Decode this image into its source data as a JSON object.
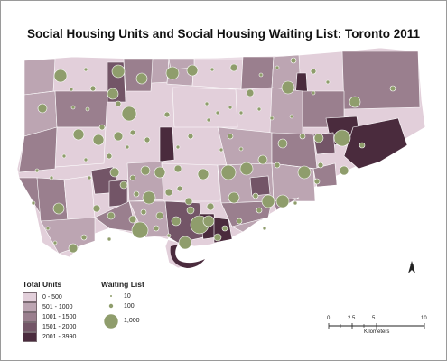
{
  "map": {
    "title": "Social Housing Units and Social Housing Waiting List: Toronto 2011",
    "colors": {
      "bg": "#ffffff",
      "class1": "#e2cfda",
      "class2": "#bca5b2",
      "class3": "#9a7f8e",
      "class4": "#735567",
      "class5": "#4a2b3d",
      "circle": "#8f9d6c",
      "circle_stroke": "#ffffff",
      "boundary": "#ffffff"
    }
  },
  "legend": {
    "total_units_title": "Total Units",
    "classes": [
      {
        "label": "0 - 500",
        "color": "#e2cfda"
      },
      {
        "label": "501 - 1000",
        "color": "#bca5b2"
      },
      {
        "label": "1001 - 1500",
        "color": "#9a7f8e"
      },
      {
        "label": "1501 - 2000",
        "color": "#735567"
      },
      {
        "label": "2001 - 3990",
        "color": "#4a2b3d"
      }
    ],
    "waiting_list_title": "Waiting List",
    "sizes": [
      {
        "label": "10"
      },
      {
        "label": "100"
      },
      {
        "label": "1,000"
      }
    ]
  },
  "north_arrow": {
    "label": "N"
  },
  "scale_bar": {
    "ticks": [
      "0",
      "2.5",
      "5",
      "10"
    ],
    "unit": "Kilometers"
  }
}
